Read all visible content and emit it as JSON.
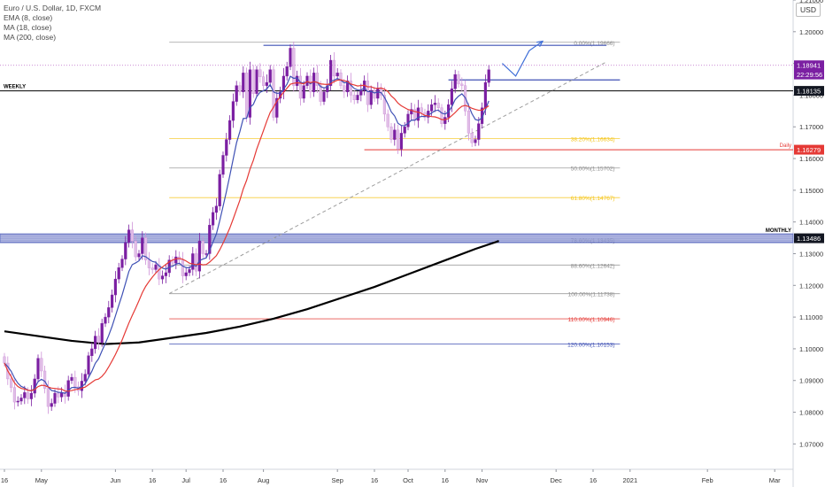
{
  "legend": {
    "symbol": "Euro / U.S. Dollar, 1D, FXCM",
    "ema": "EMA (8, close)",
    "ma18": "MA (18, close)",
    "ma200": "MA (200, close)"
  },
  "currency_button": "USD",
  "chart_data": {
    "type": "candlestick",
    "symbol": "Euro / U.S. Dollar",
    "timeframe": "1D",
    "source": "FXCM",
    "ylim": [
      1.062,
      1.21
    ],
    "y_ticks": [
      1.07,
      1.08,
      1.09,
      1.1,
      1.11,
      1.12,
      1.13,
      1.14,
      1.15,
      1.16,
      1.17,
      1.18,
      1.19,
      1.2,
      1.21
    ],
    "y_tick_labels": [
      "1.07000",
      "1.08000",
      "1.09000",
      "1.10000",
      "1.11000",
      "1.12000",
      "1.13000",
      "1.14000",
      "1.15000",
      "1.16000",
      "1.17000",
      "1.18000",
      "1.19000",
      "1.20000",
      "1.21000"
    ],
    "x_ticks": [
      {
        "label": "16",
        "bar": 0
      },
      {
        "label": "May",
        "bar": 11
      },
      {
        "label": "Jun",
        "bar": 33
      },
      {
        "label": "16",
        "bar": 44
      },
      {
        "label": "Jul",
        "bar": 54
      },
      {
        "label": "16",
        "bar": 65
      },
      {
        "label": "Aug",
        "bar": 77
      },
      {
        "label": "Sep",
        "bar": 99
      },
      {
        "label": "16",
        "bar": 110
      },
      {
        "label": "Oct",
        "bar": 120
      },
      {
        "label": "16",
        "bar": 131
      },
      {
        "label": "Nov",
        "bar": 142
      },
      {
        "label": "Dec",
        "bar": 164
      },
      {
        "label": "16",
        "bar": 175
      },
      {
        "label": "2021",
        "bar": 186
      },
      {
        "label": "Feb",
        "bar": 209
      },
      {
        "label": "Mar",
        "bar": 229
      }
    ],
    "candles": {
      "start_bar": 0,
      "closes": [
        1.0955,
        1.0905,
        1.0878,
        1.0832,
        1.0835,
        1.0845,
        1.0862,
        1.0842,
        1.086,
        1.0905,
        1.097,
        1.093,
        1.0875,
        1.0818,
        1.0828,
        1.086,
        1.0848,
        1.0862,
        1.085,
        1.09,
        1.091,
        1.088,
        1.0868,
        1.0898,
        1.092,
        1.0978,
        1.1,
        1.104,
        1.102,
        1.108,
        1.11,
        1.113,
        1.117,
        1.122,
        1.1256,
        1.1283,
        1.1335,
        1.1375,
        1.134,
        1.129,
        1.13,
        1.135,
        1.128,
        1.1255,
        1.125,
        1.1265,
        1.122,
        1.123,
        1.124,
        1.128,
        1.127,
        1.129,
        1.128,
        1.123,
        1.124,
        1.125,
        1.13,
        1.1245,
        1.134,
        1.13,
        1.13,
        1.139,
        1.143,
        1.145,
        1.155,
        1.161,
        1.166,
        1.172,
        1.178,
        1.183,
        1.181,
        1.187,
        1.173,
        1.188,
        1.1805,
        1.188,
        1.1858,
        1.183,
        1.184,
        1.188,
        1.173,
        1.179,
        1.181,
        1.186,
        1.189,
        1.1948,
        1.183,
        1.186,
        1.179,
        1.183,
        1.186,
        1.181,
        1.187,
        1.183,
        1.178,
        1.181,
        1.183,
        1.191,
        1.186,
        1.187,
        1.183,
        1.181,
        1.1845,
        1.18,
        1.1785,
        1.18,
        1.1815,
        1.1845,
        1.177,
        1.1815,
        1.179,
        1.182,
        1.18,
        1.174,
        1.17,
        1.166,
        1.169,
        1.163,
        1.168,
        1.17,
        1.174,
        1.1755,
        1.172,
        1.176,
        1.1745,
        1.173,
        1.175,
        1.177,
        1.1775,
        1.176,
        1.171,
        1.173,
        1.177,
        1.182,
        1.1865,
        1.1835,
        1.183,
        1.175,
        1.168,
        1.165,
        1.166,
        1.171,
        1.176,
        1.184,
        1.188
      ]
    },
    "ema8_label": "EMA (8, close)",
    "ma18_label": "MA (18, close)",
    "ma200_label": "MA (200, close)",
    "ma200_points": [
      [
        0,
        1.1055
      ],
      [
        10,
        1.104
      ],
      [
        20,
        1.1025
      ],
      [
        30,
        1.1015
      ],
      [
        40,
        1.102
      ],
      [
        50,
        1.1035
      ],
      [
        60,
        1.105
      ],
      [
        70,
        1.107
      ],
      [
        80,
        1.1095
      ],
      [
        90,
        1.1125
      ],
      [
        100,
        1.116
      ],
      [
        110,
        1.1195
      ],
      [
        120,
        1.1235
      ],
      [
        130,
        1.1275
      ],
      [
        140,
        1.1315
      ],
      [
        147,
        1.134
      ]
    ],
    "horizontal_levels": [
      {
        "label": "WEEKLY",
        "price": 1.18135,
        "color": "#000000",
        "tag": "1.18135",
        "tag_bg": "#131722"
      },
      {
        "label": "Daily",
        "price": 1.16279,
        "color": "#e53935",
        "tag": "1.16279",
        "tag_bg": "#e53935",
        "start_bar": 107
      },
      {
        "label": "MONTHLY",
        "price": 1.13486,
        "color": "#3f51b5",
        "tag": "1.13486",
        "tag_bg": "#131722"
      }
    ],
    "price_tags": [
      {
        "value": "1.18941",
        "price": 1.18941,
        "bg": "#7b1fa2"
      },
      {
        "value": "22:29:56",
        "price": 1.1872,
        "bg": "#7b1fa2"
      }
    ],
    "resistance_lines": [
      {
        "price": 1.1957,
        "start_bar": 77,
        "end_bar": 179
      },
      {
        "price": 1.1848,
        "start_bar": 132,
        "end_bar": 183
      }
    ],
    "fib_levels": [
      {
        "label": "0.00%(1.19666)",
        "price": 1.19666,
        "color": "#8c8c8c"
      },
      {
        "label": "38.20%(1.16634)",
        "price": 1.16634,
        "color": "#f5c518"
      },
      {
        "label": "50.00%(1.15702)",
        "price": 1.15702,
        "color": "#8c8c8c"
      },
      {
        "label": "61.80%(1.14767)",
        "price": 1.14767,
        "color": "#f5c518"
      },
      {
        "label": "78.60%(1.13435)",
        "price": 1.13435,
        "color": "#8c8c8c"
      },
      {
        "label": "88.60%(1.12642)",
        "price": 1.12642,
        "color": "#8c8c8c"
      },
      {
        "label": "100.00%(1.11738)",
        "price": 1.11738,
        "color": "#8c8c8c"
      },
      {
        "label": "110.00%(1.10946)",
        "price": 1.10946,
        "color": "#e53935"
      },
      {
        "label": "120.00%(1.10153)",
        "price": 1.10153,
        "color": "#3f51b5"
      }
    ],
    "fib_start_bar": 49,
    "trendline": {
      "from": [
        49,
        1.1174
      ],
      "to": [
        179,
        1.1905
      ],
      "style": "dashed",
      "color": "#9e9e9e"
    },
    "projection_path": [
      [
        148,
        1.19
      ],
      [
        152,
        1.186
      ],
      [
        156,
        1.194
      ],
      [
        160,
        1.197
      ]
    ],
    "colors": {
      "bull": "#7b1fa2",
      "bear": "#e1bee7",
      "ema": "#3f51b5",
      "ma18": "#e53935",
      "ma200": "#000000",
      "projection": "#3f6fd8"
    }
  }
}
